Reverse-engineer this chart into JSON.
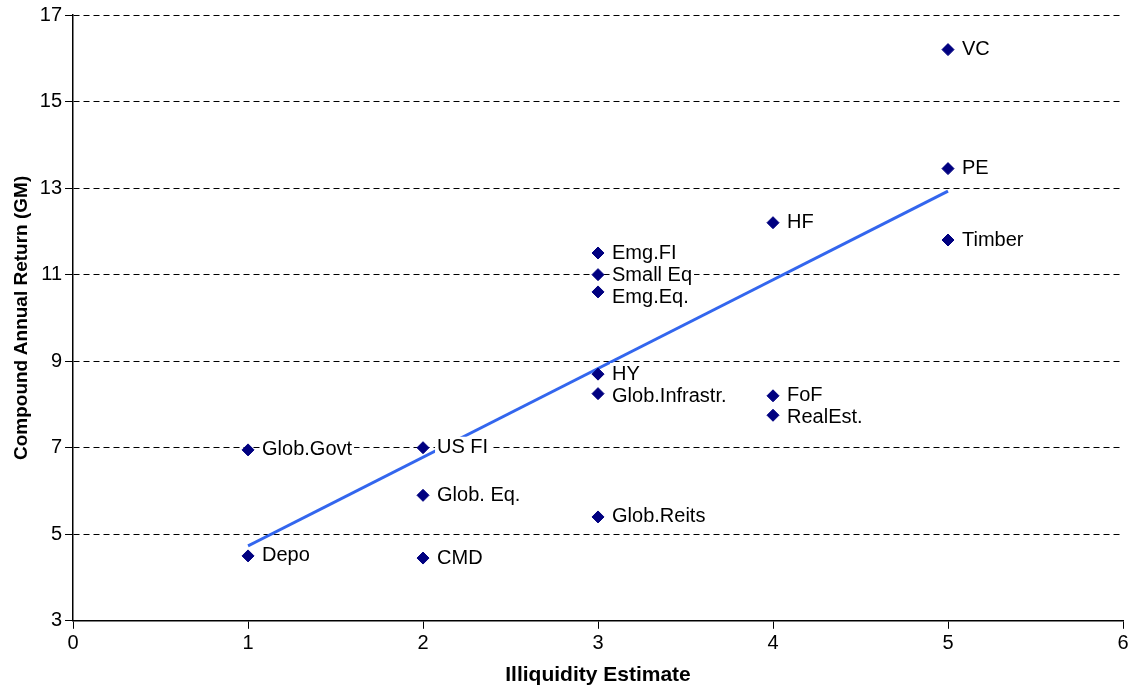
{
  "chart_data": {
    "type": "scatter",
    "xlabel": "Illiquidity Estimate",
    "ylabel": "Compound Annual Return (GM)",
    "xlim": [
      0,
      6
    ],
    "xticks": [
      0,
      1,
      2,
      3,
      4,
      5,
      6
    ],
    "ylim": [
      3,
      17
    ],
    "yticks": [
      3,
      5,
      7,
      9,
      11,
      13,
      15,
      17
    ],
    "grid": "y",
    "legend": false,
    "marker": "diamond",
    "series": [
      {
        "color": "#000080",
        "x": [
          5,
          5,
          5,
          4,
          3,
          3,
          3,
          3,
          3,
          4,
          4,
          1,
          2,
          2,
          3,
          1,
          2
        ],
        "values": [
          16.2,
          13.45,
          11.8,
          12.2,
          11.5,
          11.0,
          10.6,
          8.7,
          8.25,
          8.2,
          7.75,
          6.95,
          7.0,
          5.9,
          5.4,
          4.5,
          4.45
        ]
      },
      {
        "type": "line",
        "color": "#3366ee",
        "x": [
          1,
          5
        ],
        "values": [
          4.73,
          12.93
        ],
        "marker": "none"
      }
    ],
    "annotations": [
      {
        "text": "VC",
        "x": 5,
        "y": 16.2
      },
      {
        "text": "PE",
        "x": 5,
        "y": 13.45
      },
      {
        "text": "Timber",
        "x": 5,
        "y": 11.8
      },
      {
        "text": "HF",
        "x": 4,
        "y": 12.2
      },
      {
        "text": "Emg.FI",
        "x": 3,
        "y": 11.5
      },
      {
        "text": "Small Eq",
        "x": 3,
        "y": 11.0
      },
      {
        "text": "Emg.Eq.",
        "x": 3,
        "y": 10.6
      },
      {
        "text": "HY",
        "x": 3,
        "y": 8.7
      },
      {
        "text": "Glob.Infrastr.",
        "x": 3,
        "y": 8.25
      },
      {
        "text": "FoF",
        "x": 4,
        "y": 8.2
      },
      {
        "text": "RealEst.",
        "x": 4,
        "y": 7.75
      },
      {
        "text": "Glob.Govt",
        "x": 1,
        "y": 6.95
      },
      {
        "text": "US FI",
        "x": 2,
        "y": 7.0
      },
      {
        "text": "Glob. Eq.",
        "x": 2,
        "y": 5.9
      },
      {
        "text": "Glob.Reits",
        "x": 3,
        "y": 5.4
      },
      {
        "text": "Depo",
        "x": 1,
        "y": 4.5
      },
      {
        "text": "CMD",
        "x": 2,
        "y": 4.45
      }
    ]
  }
}
